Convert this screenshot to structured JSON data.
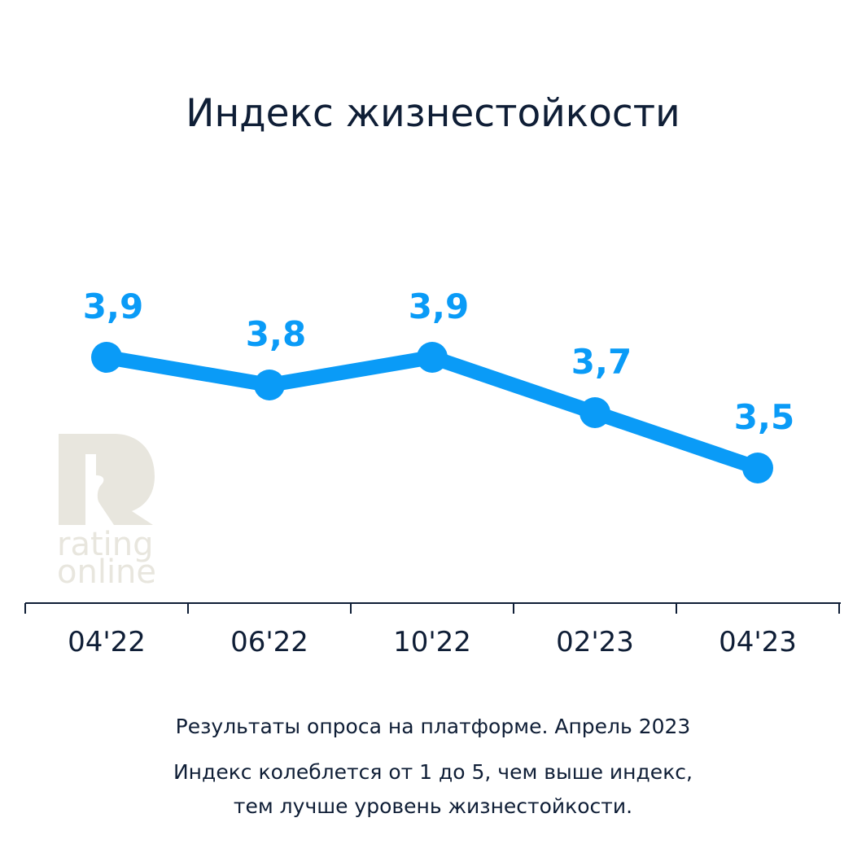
{
  "chart_data": {
    "type": "line",
    "title": "Индекс жизнестойкости",
    "categories": [
      "04'22",
      "06'22",
      "10'22",
      "02'23",
      "04'23"
    ],
    "values": [
      3.9,
      3.8,
      3.9,
      3.7,
      3.5
    ],
    "data_labels": [
      "3,9",
      "3,8",
      "3,9",
      "3,7",
      "3,5"
    ],
    "xlabel": "",
    "ylabel": "",
    "ylim": [
      3.0,
      5.0
    ],
    "grid": false,
    "legend": "none",
    "series_color": "#0a9bf7",
    "axis_color": "#0f1e36"
  },
  "logo": {
    "text_line1": "rating",
    "text_line2": "online",
    "color": "#e8e6de"
  },
  "footer": {
    "source": "Результаты опроса на платформе. Апрель 2023",
    "note_line1": "Индекс колеблется от 1 до 5, чем выше индекс,",
    "note_line2": "тем лучше уровень жизнестойкости."
  }
}
